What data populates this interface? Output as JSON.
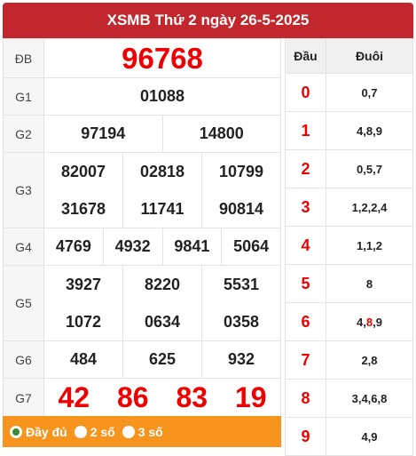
{
  "header": {
    "title": "XSMB Thứ 2 ngày 26-5-2025"
  },
  "prizes": {
    "db": {
      "label": "ĐB",
      "values": [
        "96768"
      ]
    },
    "g1": {
      "label": "G1",
      "values": [
        "01088"
      ]
    },
    "g2": {
      "label": "G2",
      "values": [
        "97194",
        "14800"
      ]
    },
    "g3": {
      "label": "G3",
      "values": [
        "82007",
        "02818",
        "10799",
        "31678",
        "11741",
        "90814"
      ]
    },
    "g4": {
      "label": "G4",
      "values": [
        "4769",
        "4932",
        "9841",
        "5064"
      ]
    },
    "g5": {
      "label": "G5",
      "values": [
        "3927",
        "8220",
        "5531",
        "1072",
        "0634",
        "0358"
      ]
    },
    "g6": {
      "label": "G6",
      "values": [
        "484",
        "625",
        "932"
      ]
    },
    "g7": {
      "label": "G7",
      "values": [
        "42",
        "86",
        "83",
        "19"
      ]
    }
  },
  "loto": {
    "head_label": "Đầu",
    "tail_label": "Đuôi",
    "rows": [
      {
        "head": "0",
        "tails": "0,7"
      },
      {
        "head": "1",
        "tails": "4,8,9"
      },
      {
        "head": "2",
        "tails": "0,5,7"
      },
      {
        "head": "3",
        "tails": "1,2,2,4"
      },
      {
        "head": "4",
        "tails": "1,1,2"
      },
      {
        "head": "5",
        "tails": "8"
      },
      {
        "head": "6",
        "tails_a": "4,",
        "tails_red": "8",
        "tails_b": ",9"
      },
      {
        "head": "7",
        "tails": "2,8"
      },
      {
        "head": "8",
        "tails": "3,4,6,8"
      },
      {
        "head": "9",
        "tails": "4,9"
      }
    ]
  },
  "footer": {
    "options": [
      {
        "label": "Đầy đủ",
        "checked": true
      },
      {
        "label": "2 số",
        "checked": false
      },
      {
        "label": "3 số",
        "checked": false
      }
    ]
  },
  "colors": {
    "header": "#c1272d",
    "footer": "#f7941d",
    "highlight": "#e00000"
  }
}
